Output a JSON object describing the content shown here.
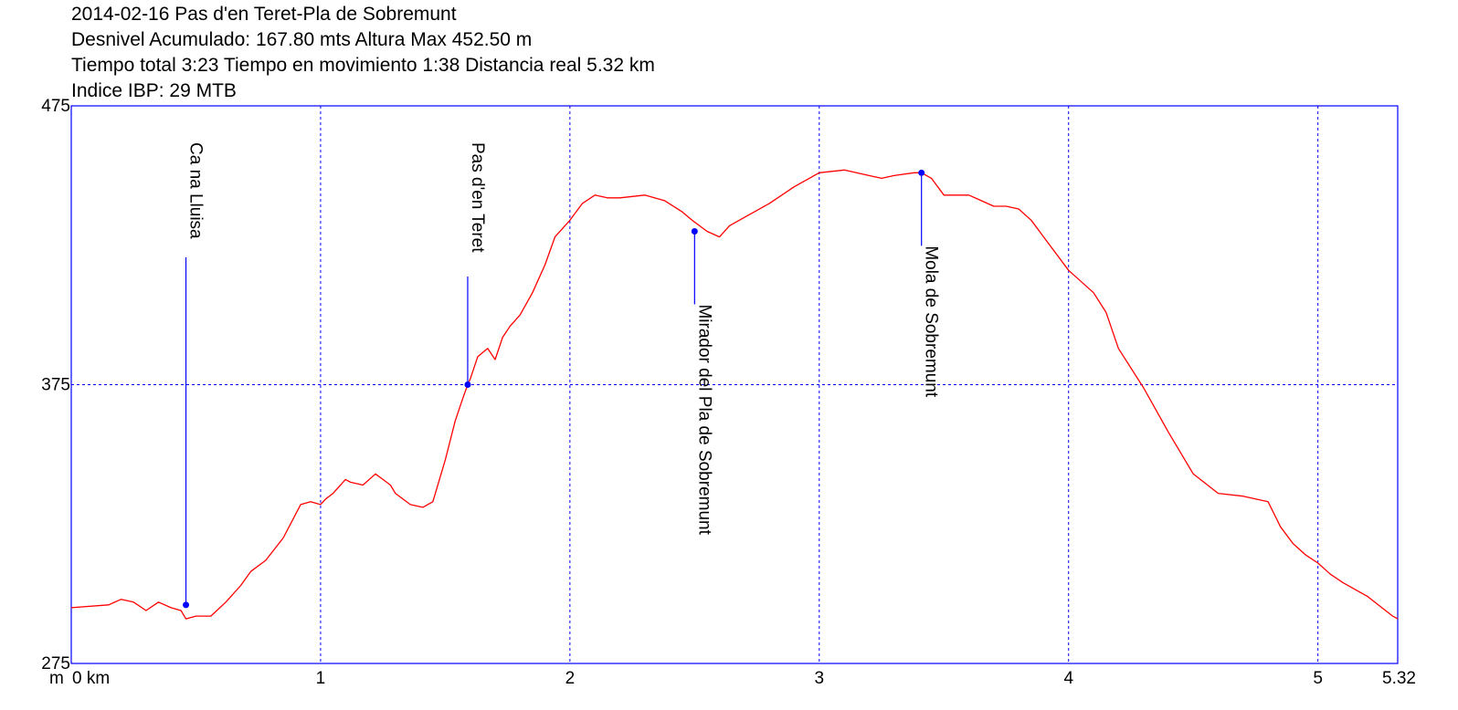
{
  "header": {
    "line1": "2014-02-16 Pas d'en Teret-Pla de Sobremunt",
    "line2": "Desnivel Acumulado: 167.80 mts  Altura Max 452.50 m",
    "line3": "Tiempo total 3:23 Tiempo en movimiento 1:38 Distancia real 5.32 km",
    "line4": "Indice IBP: 29 MTB"
  },
  "colors": {
    "frame": "#0000ff",
    "grid": "#0000ff",
    "profile": "#ff0000",
    "marker": "#0000ff",
    "text": "#000000"
  },
  "chart_data": {
    "type": "line",
    "title": "2014-02-16 Pas d'en Teret-Pla de Sobremunt",
    "x_unit_label": "m",
    "xlim": [
      0,
      5.32
    ],
    "ylim": [
      275,
      475
    ],
    "grid": true,
    "x_ticks": [
      {
        "value": 0,
        "label": "0 km"
      },
      {
        "value": 1,
        "label": "1"
      },
      {
        "value": 2,
        "label": "2"
      },
      {
        "value": 3,
        "label": "3"
      },
      {
        "value": 4,
        "label": "4"
      },
      {
        "value": 5,
        "label": "5"
      },
      {
        "value": 5.32,
        "label": "5.32"
      }
    ],
    "y_ticks": [
      {
        "value": 475,
        "label": "475"
      },
      {
        "value": 375,
        "label": "375"
      },
      {
        "value": 275,
        "label": "275"
      }
    ],
    "series": [
      {
        "x": [
          0,
          0.15,
          0.2,
          0.25,
          0.3,
          0.35,
          0.4,
          0.44,
          0.46,
          0.5,
          0.52,
          0.56,
          0.62,
          0.68,
          0.72,
          0.78,
          0.85,
          0.92,
          0.96,
          1.0,
          1.02,
          1.05,
          1.1,
          1.12,
          1.17,
          1.22,
          1.25,
          1.28,
          1.3,
          1.36,
          1.41,
          1.45,
          1.5,
          1.54,
          1.57,
          1.59,
          1.6,
          1.63,
          1.67,
          1.7,
          1.73,
          1.76,
          1.8,
          1.85,
          1.9,
          1.94,
          2.0,
          2.05,
          2.1,
          2.15,
          2.2,
          2.3,
          2.38,
          2.45,
          2.49,
          2.55,
          2.6,
          2.64,
          2.7,
          2.8,
          2.9,
          3.0,
          3.1,
          3.2,
          3.25,
          3.3,
          3.38,
          3.41,
          3.45,
          3.5,
          3.55,
          3.6,
          3.65,
          3.7,
          3.75,
          3.8,
          3.85,
          3.9,
          4.0,
          4.1,
          4.15,
          4.2,
          4.3,
          4.4,
          4.5,
          4.6,
          4.7,
          4.8,
          4.85,
          4.9,
          4.95,
          5.0,
          5.05,
          5.1,
          5.2,
          5.3,
          5.32
        ],
        "y": [
          295,
          296,
          298,
          297,
          294,
          297,
          295,
          294,
          291,
          292,
          292,
          292,
          297,
          303,
          308,
          312,
          320,
          332,
          333,
          332,
          334,
          336,
          341,
          340,
          339,
          343,
          341,
          339,
          336,
          332,
          331,
          333,
          348,
          362,
          370,
          375,
          377,
          385,
          388,
          384,
          392,
          396,
          400,
          408,
          418,
          428,
          434,
          440,
          443,
          442,
          442,
          443,
          441,
          437,
          434,
          430,
          428,
          432,
          435,
          440,
          446,
          451,
          452,
          450,
          449,
          450,
          451,
          451,
          449,
          443,
          443,
          443,
          441,
          439,
          439,
          438,
          434,
          428,
          416,
          408,
          401,
          388,
          374,
          358,
          343,
          336,
          335,
          333,
          324,
          318,
          314,
          311,
          307,
          304,
          299,
          292,
          291
        ]
      }
    ],
    "waypoints": [
      {
        "name": "Ca na Lluisa",
        "x": 0.46,
        "y": 296
      },
      {
        "name": "Pas d'en Teret",
        "x": 1.59,
        "y": 375
      },
      {
        "name": "Mirador del Pla de Sobremunt",
        "x": 2.5,
        "y": 430
      },
      {
        "name": "Mola de Sobremunt",
        "x": 3.41,
        "y": 451
      }
    ]
  }
}
